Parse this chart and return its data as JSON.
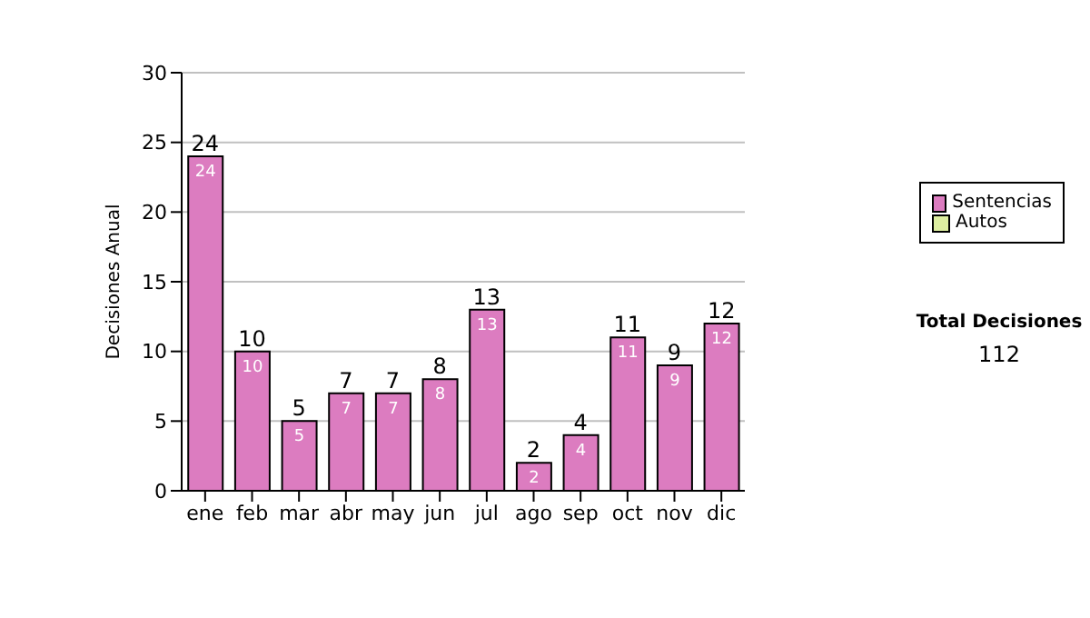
{
  "chart_data": {
    "type": "bar",
    "stacked": true,
    "ylabel": "Decisiones Anual",
    "categories": [
      "ene",
      "feb",
      "mar",
      "abr",
      "may",
      "jun",
      "jul",
      "ago",
      "sep",
      "oct",
      "nov",
      "dic"
    ],
    "series": [
      {
        "name": "Sentencias",
        "color": "#dc7cc0",
        "values": [
          24,
          10,
          5,
          7,
          7,
          8,
          13,
          2,
          4,
          11,
          9,
          12
        ],
        "value_labels": [
          "24",
          "10",
          "5",
          "7",
          "7",
          "8",
          "13",
          "2",
          "4",
          "11",
          "9",
          "12"
        ]
      },
      {
        "name": "Autos",
        "color": "#ddeea0",
        "values": [
          0,
          0,
          0,
          0,
          0,
          0,
          0,
          0,
          0,
          0,
          0,
          0
        ]
      }
    ],
    "totals": [
      "24",
      "10",
      "5",
      "7",
      "7",
      "8",
      "13",
      "2",
      "4",
      "11",
      "9",
      "12"
    ],
    "ylim": [
      0,
      30
    ],
    "yticks": [
      0,
      5,
      10,
      15,
      20,
      25,
      30
    ],
    "grid": "y",
    "legend": "right",
    "annotations": [
      "Total Decisiones",
      "112"
    ]
  }
}
